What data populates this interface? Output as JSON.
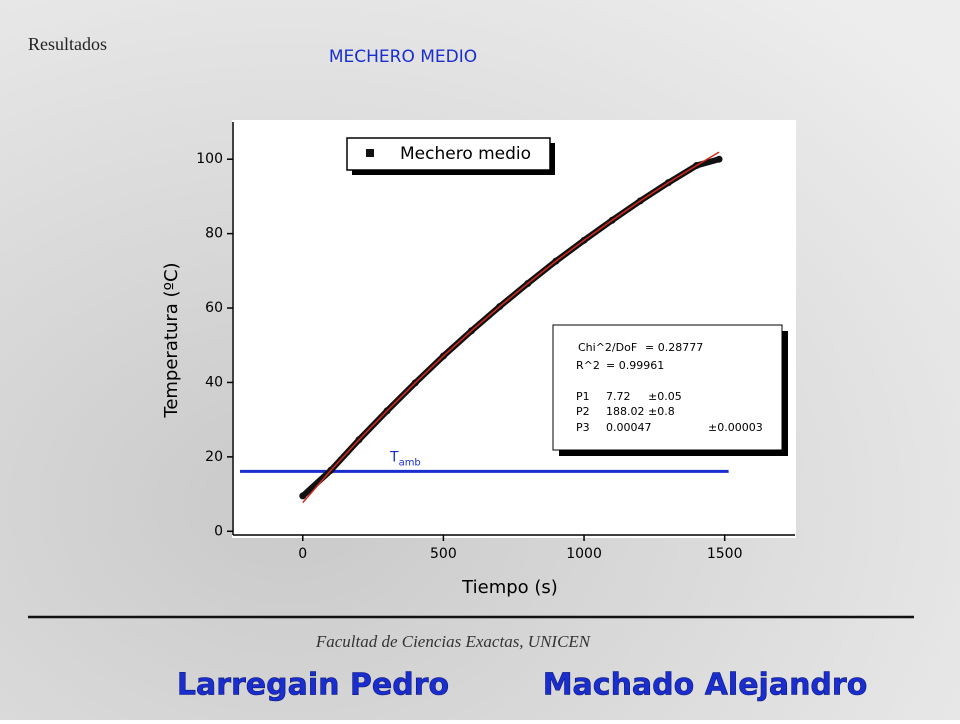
{
  "slide": {
    "section": "Resultados",
    "heading": "MECHERO MEDIO",
    "footer": "Facultad de Ciencias Exactas, UNICEN",
    "authors": [
      "Larregain Pedro",
      "Machado Alejandro"
    ]
  },
  "chart_data": {
    "type": "line",
    "x_label": "Tiempo (s)",
    "y_label": "Temperatura (ºC)",
    "x": [
      0,
      100,
      200,
      300,
      400,
      500,
      600,
      700,
      800,
      900,
      1000,
      1100,
      1200,
      1300,
      1400,
      1480
    ],
    "series": [
      {
        "name": "Mechero medio",
        "color": "#111111",
        "values": [
          9.5,
          16.4,
          24.6,
          32.4,
          39.9,
          47.1,
          53.9,
          60.4,
          66.6,
          72.6,
          78.2,
          83.6,
          88.8,
          93.7,
          98.3,
          100
        ]
      }
    ],
    "fit": {
      "color": "#d42a1e",
      "values": [
        7.7,
        16.4,
        24.6,
        32.4,
        39.9,
        47.1,
        53.9,
        60.4,
        66.6,
        72.6,
        78.2,
        83.6,
        88.8,
        93.7,
        98.3,
        101.9
      ]
    },
    "reference": {
      "symbol": "T",
      "subscript": "amb",
      "value": 16.1,
      "x": [
        -223,
        1514
      ],
      "color": "#1a2ecf"
    },
    "fit_report": [
      [
        "Chi^2/DoF",
        "= 0.28777",
        ""
      ],
      [
        "R^2",
        "= 0.99961",
        ""
      ],
      [
        "P1",
        "7.72",
        "±0.05"
      ],
      [
        "P2",
        "188.02",
        "±0.8"
      ],
      [
        "P3",
        "0.00047",
        "±0.00003"
      ]
    ],
    "xlim": [
      -248,
      1750
    ],
    "ylim": [
      -1,
      110
    ],
    "xticks": [
      0,
      500,
      1000,
      1500
    ],
    "yticks": [
      0,
      20,
      40,
      60,
      80,
      100
    ]
  }
}
